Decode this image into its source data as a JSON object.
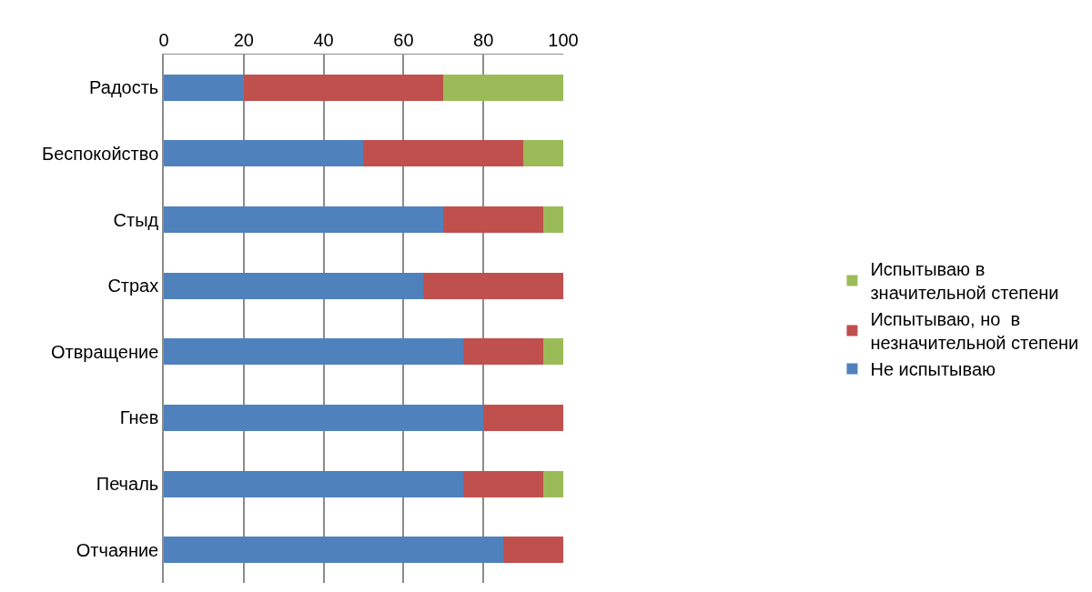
{
  "chart_data": {
    "type": "bar",
    "orientation": "horizontal",
    "stacked": true,
    "categories": [
      "Радость",
      "Беспокойство",
      "Стыд",
      "Страх",
      "Отвращение",
      "Гнев",
      "Печаль",
      "Отчаяние"
    ],
    "series": [
      {
        "name": "Не испытываю",
        "color": "#4f81bd",
        "values": [
          20,
          50,
          70,
          65,
          75,
          80,
          75,
          85
        ]
      },
      {
        "name": "Испытываю, но  в незначительной степени",
        "color": "#c0504d",
        "values": [
          50,
          40,
          25,
          35,
          20,
          20,
          20,
          15
        ]
      },
      {
        "name": "Испытываю в значительной степени",
        "color": "#9bbb59",
        "values": [
          30,
          10,
          5,
          0,
          5,
          0,
          5,
          0
        ]
      }
    ],
    "xlim": [
      0,
      100
    ],
    "xticks": [
      0,
      20,
      40,
      60,
      80,
      100
    ],
    "grid": "x",
    "legend": "right"
  }
}
